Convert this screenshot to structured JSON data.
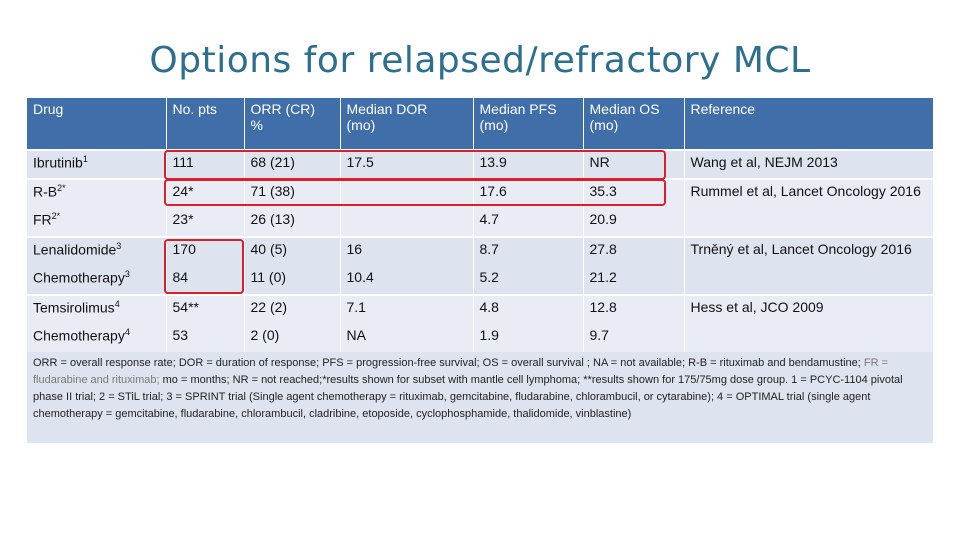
{
  "title": "Options for relapsed/refractory MCL",
  "headers": {
    "drug": "Drug",
    "npts": "No. pts",
    "orr_line1": "ORR (CR)",
    "orr_line2": "%",
    "dor_line1": "Median DOR",
    "dor_line2": "(mo)",
    "pfs_line1": "Median PFS",
    "pfs_line2": "(mo)",
    "os_line1": "Median OS",
    "os_line2": "(mo)",
    "reference": "Reference"
  },
  "rows": [
    {
      "drug": "Ibrutinib",
      "sup": "1",
      "npts": "111",
      "orr": "68 (21)",
      "dor": "17.5",
      "pfs": "13.9",
      "os": "NR"
    },
    {
      "drug": "R-B",
      "sup": "2*",
      "npts": "24*",
      "orr": "71 (38)",
      "dor": "",
      "pfs": "17.6",
      "os": "35.3"
    },
    {
      "drug": "FR",
      "sup": "2*",
      "npts": "23*",
      "orr": "26 (13)",
      "dor": "",
      "pfs": "4.7",
      "os": "20.9"
    },
    {
      "drug": "Lenalidomide",
      "sup": "3",
      "npts": "170",
      "orr": "40 (5)",
      "dor": "16",
      "pfs": "8.7",
      "os": "27.8"
    },
    {
      "drug": "Chemotherapy",
      "sup": "3",
      "npts": "84",
      "orr": "11 (0)",
      "dor": "10.4",
      "pfs": "5.2",
      "os": "21.2"
    },
    {
      "drug": "Temsirolimus",
      "sup": "4",
      "npts": "54**",
      "orr": "22 (2)",
      "dor": "7.1",
      "pfs": "4.8",
      "os": "12.8"
    },
    {
      "drug": "Chemotherapy",
      "sup": "4",
      "npts": "53",
      "orr": "2 (0)",
      "dor": "NA",
      "pfs": "1.9",
      "os": "9.7"
    }
  ],
  "references": [
    "Wang et al, NEJM 2013",
    "Rummel et al, Lancet Oncology 2016",
    "Trněný et al, Lancet Oncology 2016",
    "Hess et al, JCO 2009"
  ],
  "footnote": {
    "p1": "ORR = overall response rate; DOR = duration of response; PFS = progression-free survival; OS = overall survival ; NA = not available; ",
    "p2": "R-B = rituximab and bendamustine; ",
    "p3": "FR = fludarabine and rituximab; ",
    "p4": "mo = months; NR = not reached;*results shown for subset with mantle cell lymphoma; **results shown for 175/75mg dose group. ",
    "p5": "1 = PCYC-1104 pivotal phase II trial; 2 = STiL trial; 3 = SPRINT trial (Single agent chemotherapy = rituximab, gemcitabine, fludarabine, chlorambucil, or cytarabine); 4 = OPTIMAL trial (single agent chemotherapy = gemcitabine, fludarabine, chlorambucil, cladribine, etoposide, cyclophosphamide, thalidomide, vinblastine)"
  },
  "colors": {
    "title": "#2e6f8e",
    "header_bg": "#3f6ea8",
    "highlight": "#d9202a"
  }
}
